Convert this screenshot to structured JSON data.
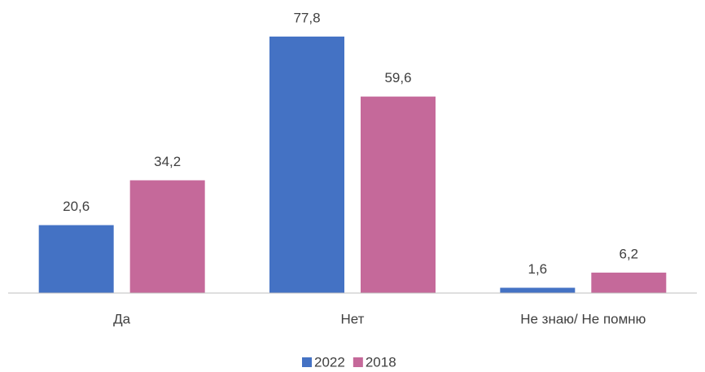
{
  "chart_data": {
    "type": "bar",
    "categories": [
      "Да",
      "Нет",
      "Не знаю/ Не помню"
    ],
    "series": [
      {
        "name": "2022",
        "color": "#4472c4",
        "values": [
          20.6,
          77.8,
          1.6
        ],
        "value_labels": [
          "20,6",
          "77,8",
          "1,6"
        ]
      },
      {
        "name": "2018",
        "color": "#c5699a",
        "values": [
          34.2,
          59.6,
          6.2
        ],
        "value_labels": [
          "34,2",
          "59,6",
          "6,2"
        ]
      }
    ],
    "ylim": [
      0,
      80
    ],
    "legend": "bottom"
  }
}
